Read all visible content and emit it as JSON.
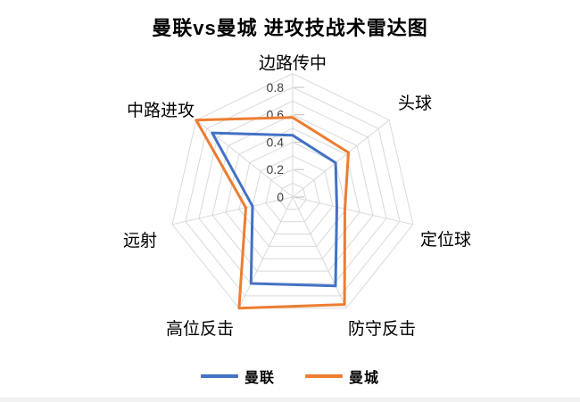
{
  "title": "曼联vs曼城 进攻技战术雷达图",
  "chart_data": {
    "type": "radar",
    "title": "曼联vs曼城 进攻技战术雷达图",
    "categories": [
      "边路传中",
      "头球",
      "定位球",
      "防守反击",
      "高位反击",
      "远射",
      "中路进攻"
    ],
    "series": [
      {
        "name": "曼联",
        "color": "#4472C4",
        "values": [
          0.45,
          0.4,
          0.33,
          0.72,
          0.7,
          0.3,
          0.75
        ]
      },
      {
        "name": "曼城",
        "color": "#ED7D31",
        "values": [
          0.58,
          0.52,
          0.39,
          0.87,
          0.9,
          0.35,
          0.9
        ]
      }
    ],
    "radial_ticks": [
      "0",
      "0.2",
      "0.4",
      "0.6",
      "0.8"
    ],
    "radial_tick_values": [
      0,
      0.2,
      0.4,
      0.6,
      0.8
    ],
    "ring_step": 0.1,
    "ring_max": 0.9,
    "grid_color": "#D9D9D9",
    "tick_mark_color": "#BFBFBF",
    "tick_label_color": "#404040",
    "axis_label_color": "#000000",
    "legend_position": "bottom",
    "grid": true
  }
}
